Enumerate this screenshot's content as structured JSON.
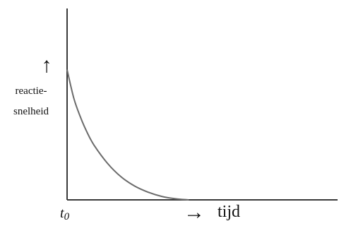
{
  "chart_data": {
    "type": "line",
    "title": "",
    "xlabel": "tijd",
    "ylabel_lines": [
      "reactie-",
      "snelheid"
    ],
    "y_arrow": "↑",
    "x_arrow": "→",
    "x_ticks": [
      {
        "label_base": "t",
        "label_sub": "0",
        "x": 0
      }
    ],
    "xlim": [
      0,
      10
    ],
    "ylim": [
      0,
      10
    ],
    "grid": false,
    "series": [
      {
        "x": [
          0,
          0.25,
          0.5,
          0.75,
          1.0,
          1.5,
          2.0,
          2.5,
          3.0,
          3.5,
          4.0,
          4.5
        ],
        "y": [
          6.8,
          5.3,
          4.3,
          3.5,
          2.85,
          1.9,
          1.2,
          0.72,
          0.4,
          0.18,
          0.06,
          0.0
        ]
      }
    ],
    "line_color": "#6b6b6b",
    "axis_color": "#3a3a3a"
  }
}
